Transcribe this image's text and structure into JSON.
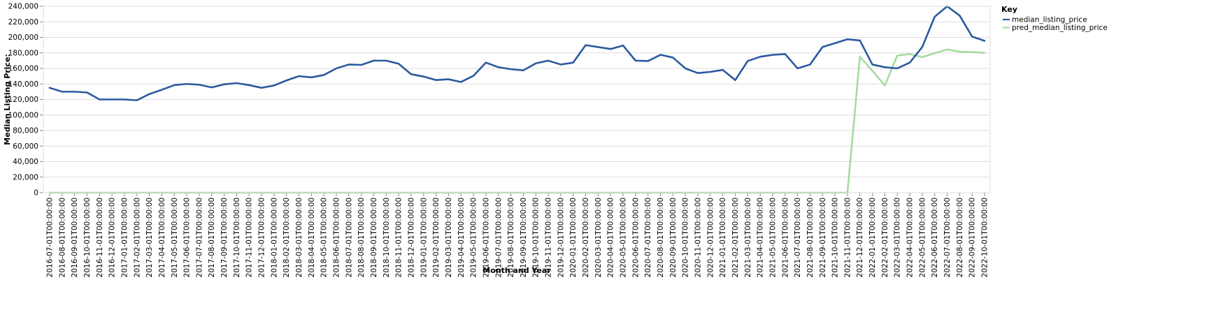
{
  "chart_data": {
    "type": "line",
    "xlabel": "Month and Year",
    "ylabel": "Median Listing Price:",
    "ylim": [
      0,
      240000
    ],
    "yticks": [
      0,
      20000,
      40000,
      60000,
      80000,
      100000,
      120000,
      140000,
      160000,
      180000,
      200000,
      220000,
      240000
    ],
    "ytick_labels": [
      "0",
      "20,000",
      "40,000",
      "60,000",
      "80,000",
      "100,000",
      "120,000",
      "140,000",
      "160,000",
      "180,000",
      "200,000",
      "220,000",
      "240,000"
    ],
    "grid": true,
    "legend": {
      "title": "Key",
      "placement": "right"
    },
    "x": [
      "2016-07-01T00:00:00",
      "2016-08-01T00:00:00",
      "2016-09-01T00:00:00",
      "2016-10-01T00:00:00",
      "2016-11-01T00:00:00",
      "2016-12-01T00:00:00",
      "2017-01-01T00:00:00",
      "2017-02-01T00:00:00",
      "2017-03-01T00:00:00",
      "2017-04-01T00:00:00",
      "2017-05-01T00:00:00",
      "2017-06-01T00:00:00",
      "2017-07-01T00:00:00",
      "2017-08-01T00:00:00",
      "2017-09-01T00:00:00",
      "2017-10-01T00:00:00",
      "2017-11-01T00:00:00",
      "2017-12-01T00:00:00",
      "2018-01-01T00:00:00",
      "2018-02-01T00:00:00",
      "2018-03-01T00:00:00",
      "2018-04-01T00:00:00",
      "2018-05-01T00:00:00",
      "2018-06-01T00:00:00",
      "2018-07-01T00:00:00",
      "2018-08-01T00:00:00",
      "2018-09-01T00:00:00",
      "2018-10-01T00:00:00",
      "2018-11-01T00:00:00",
      "2018-12-01T00:00:00",
      "2019-01-01T00:00:00",
      "2019-02-01T00:00:00",
      "2019-03-01T00:00:00",
      "2019-04-01T00:00:00",
      "2019-05-01T00:00:00",
      "2019-06-01T00:00:00",
      "2019-07-01T00:00:00",
      "2019-08-01T00:00:00",
      "2019-09-01T00:00:00",
      "2019-10-01T00:00:00",
      "2019-11-01T00:00:00",
      "2019-12-01T00:00:00",
      "2020-01-01T00:00:00",
      "2020-02-01T00:00:00",
      "2020-03-01T00:00:00",
      "2020-04-01T00:00:00",
      "2020-05-01T00:00:00",
      "2020-06-01T00:00:00",
      "2020-07-01T00:00:00",
      "2020-08-01T00:00:00",
      "2020-09-01T00:00:00",
      "2020-10-01T00:00:00",
      "2020-11-01T00:00:00",
      "2020-12-01T00:00:00",
      "2021-01-01T00:00:00",
      "2021-02-01T00:00:00",
      "2021-03-01T00:00:00",
      "2021-04-01T00:00:00",
      "2021-05-01T00:00:00",
      "2021-06-01T00:00:00",
      "2021-07-01T00:00:00",
      "2021-08-01T00:00:00",
      "2021-09-01T00:00:00",
      "2021-10-01T00:00:00",
      "2021-11-01T00:00:00",
      "2021-12-01T00:00:00",
      "2022-01-01T00:00:00",
      "2022-02-01T00:00:00",
      "2022-03-01T00:00:00",
      "2022-04-01T00:00:00",
      "2022-05-01T00:00:00",
      "2022-06-01T00:00:00",
      "2022-07-01T00:00:00",
      "2022-08-01T00:00:00",
      "2022-09-01T00:00:00",
      "2022-10-01T00:00:00"
    ],
    "series": [
      {
        "name": "median_listing_price",
        "color": "#2c5aa0",
        "values": [
          135000,
          130000,
          130000,
          129000,
          120000,
          120000,
          120000,
          119000,
          127000,
          132500,
          138500,
          140000,
          139000,
          135500,
          139500,
          141000,
          138500,
          135000,
          138000,
          144500,
          150000,
          148500,
          151500,
          160000,
          165000,
          164500,
          170000,
          170000,
          166000,
          152500,
          149500,
          145000,
          146000,
          142500,
          150500,
          167500,
          161500,
          159000,
          157500,
          166500,
          170000,
          165000,
          167500,
          190000,
          187500,
          185000,
          189500,
          170000,
          169500,
          177500,
          174000,
          160000,
          154000,
          155500,
          158000,
          145000,
          169500,
          175000,
          177500,
          178500,
          160000,
          165000,
          187500,
          192500,
          197500,
          196000,
          165000,
          161500,
          160000,
          167500,
          187500,
          226500,
          240000,
          228000,
          201000,
          195500
        ]
      },
      {
        "name": "pred_median_listing_price",
        "color": "#a6dba0",
        "values": [
          0,
          0,
          0,
          0,
          0,
          0,
          0,
          0,
          0,
          0,
          0,
          0,
          0,
          0,
          0,
          0,
          0,
          0,
          0,
          0,
          0,
          0,
          0,
          0,
          0,
          0,
          0,
          0,
          0,
          0,
          0,
          0,
          0,
          0,
          0,
          0,
          0,
          0,
          0,
          0,
          0,
          0,
          0,
          0,
          0,
          0,
          0,
          0,
          0,
          0,
          0,
          0,
          0,
          0,
          0,
          0,
          0,
          0,
          0,
          0,
          0,
          0,
          0,
          0,
          0,
          175000,
          157000,
          138000,
          176500,
          178500,
          174500,
          179500,
          184500,
          181500,
          181000,
          180000
        ]
      }
    ]
  }
}
